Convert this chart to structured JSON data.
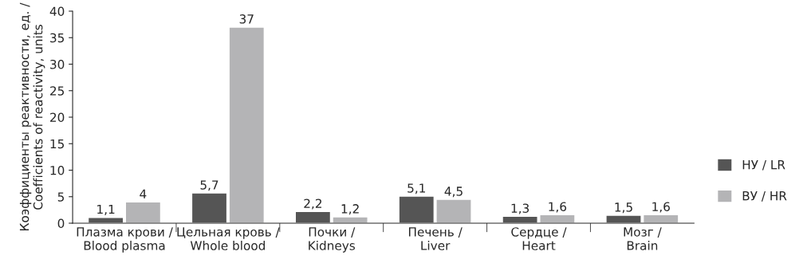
{
  "chart_data": {
    "type": "bar",
    "ylabel": "Коэффициенты реактивности, ед. /\nCoefficients of reactivity, units",
    "categories": [
      "Плазма крови /\nBlood plasma",
      "Цельная кровь /\nWhole blood",
      "Почки /\nKidneys",
      "Печень /\nLiver",
      "Сердце /\nHeart",
      "Мозг /\nBrain"
    ],
    "series": [
      {
        "name": "НУ / LR",
        "color": "#555555",
        "values": [
          1.1,
          5.7,
          2.2,
          5.1,
          1.3,
          1.5
        ],
        "value_labels": [
          "1,1",
          "5,7",
          "2,2",
          "5,1",
          "1,3",
          "1,5"
        ]
      },
      {
        "name": "ВУ / HR",
        "color": "#b4b4b6",
        "values": [
          4,
          37,
          1.2,
          4.5,
          1.6,
          1.6
        ],
        "value_labels": [
          "4",
          "37",
          "1,2",
          "4,5",
          "1,6",
          "1,6"
        ]
      }
    ],
    "ylim": [
      0,
      40
    ],
    "yticks": [
      0,
      5,
      10,
      15,
      20,
      25,
      30,
      35,
      40
    ],
    "grid": false,
    "legend": "right"
  }
}
